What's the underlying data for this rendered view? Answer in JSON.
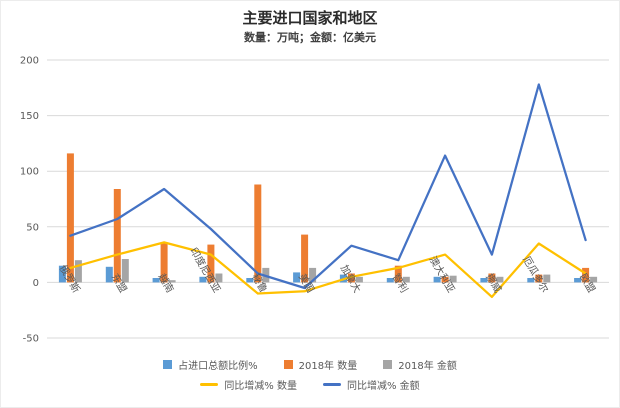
{
  "title": "主要进口国家和地区",
  "subtitle": "数量：万吨；金额：亿美元",
  "axis": {
    "y_min": -50,
    "y_max": 200
  },
  "colors": {
    "grid": "#d9d9d9",
    "axis_text": "#595959",
    "bar_share": "#5B9BD5",
    "bar_qty": "#ED7D31",
    "bar_amt": "#A5A5A5",
    "line_qty": "#FFC000",
    "line_amt": "#4472C4"
  },
  "chart_data": {
    "type": "bar",
    "combo": "bars+lines",
    "title": "主要进口国家和地区",
    "subtitle": "数量：万吨；金额：亿美元",
    "categories": [
      "俄罗斯",
      "东盟",
      "越南",
      "印度尼西亚",
      "秘鲁",
      "美国",
      "加拿大",
      "智利",
      "澳大利亚",
      "挪威",
      "厄瓜多尔",
      "欧盟"
    ],
    "bar_series": [
      {
        "name": "占进口总额比例%",
        "color": "#5B9BD5",
        "values": [
          15,
          14,
          4,
          5,
          4,
          9,
          7,
          4,
          5,
          4,
          4,
          4
        ]
      },
      {
        "name": "2018年 数量",
        "color": "#ED7D31",
        "values": [
          116,
          84,
          35,
          34,
          88,
          43,
          8,
          15,
          5,
          8,
          7,
          13
        ]
      },
      {
        "name": "2018年 金额",
        "color": "#A5A5A5",
        "values": [
          20,
          21,
          2,
          8,
          13,
          13,
          5,
          5,
          6,
          5,
          7,
          5
        ]
      }
    ],
    "line_series": [
      {
        "name": "同比增减% 数量",
        "color": "#FFC000",
        "values": [
          13,
          25,
          36,
          25,
          -10,
          -8,
          5,
          13,
          25,
          -13,
          35,
          8
        ]
      },
      {
        "name": "同比增减% 金额",
        "color": "#4472C4",
        "values": [
          42,
          57,
          84,
          48,
          8,
          -5,
          33,
          20,
          114,
          25,
          178,
          38
        ]
      }
    ],
    "ylim": [
      -50,
      200
    ],
    "yticks": [
      -50,
      0,
      50,
      100,
      150,
      200
    ],
    "grid": true,
    "legend_position": "bottom",
    "xlabel": "",
    "ylabel": ""
  }
}
